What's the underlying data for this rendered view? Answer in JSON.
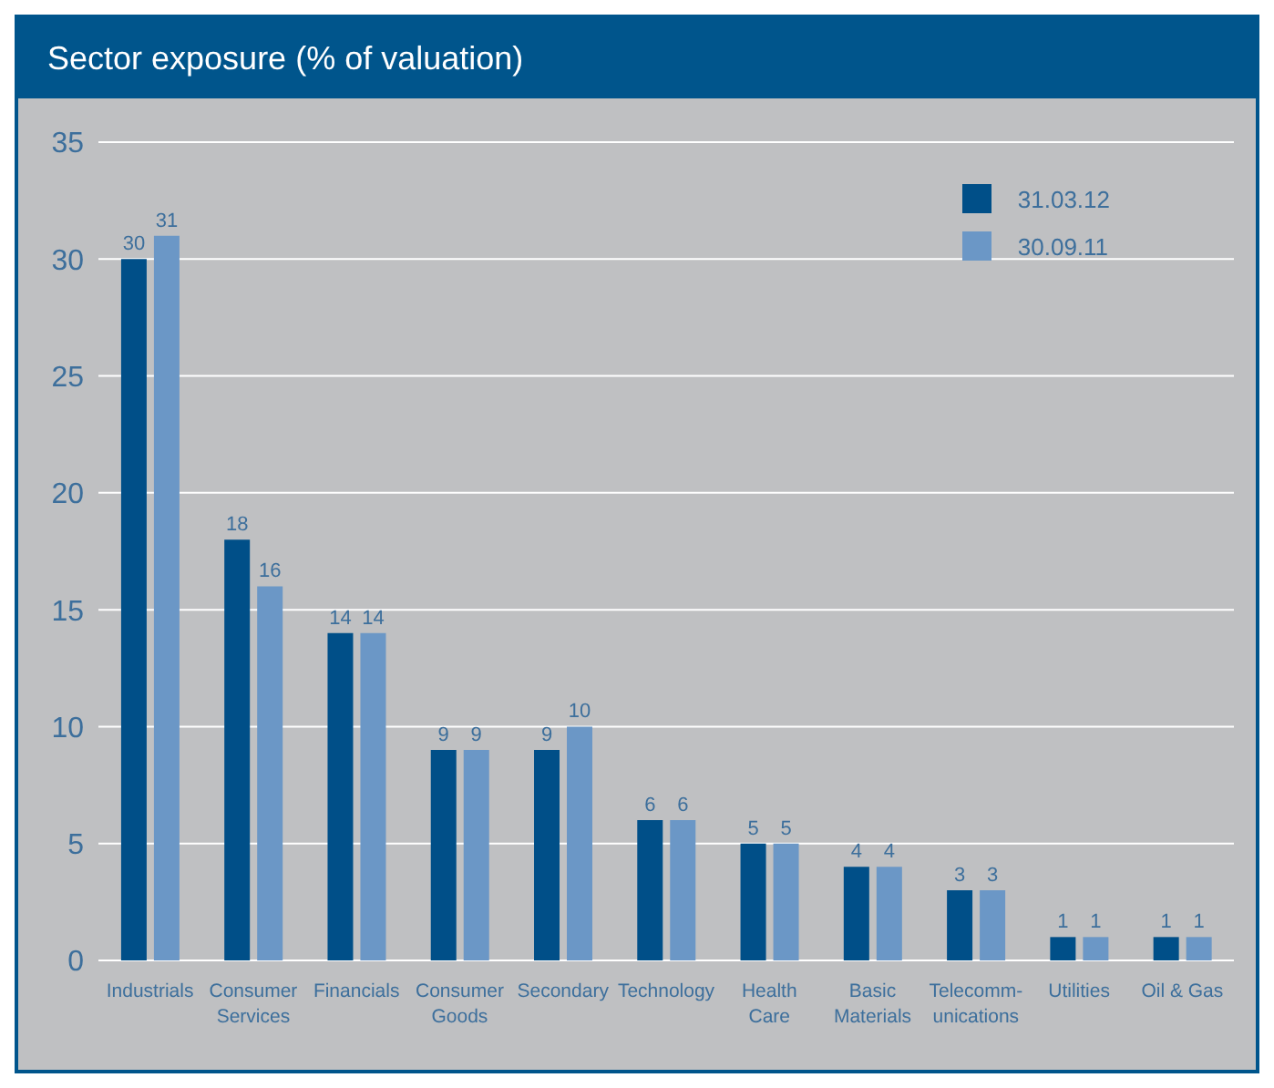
{
  "chart_data": {
    "type": "bar",
    "title": "Sector exposure (% of valuation)",
    "categories": [
      "Industrials",
      "Consumer\nServices",
      "Financials",
      "Consumer\nGoods",
      "Secondary",
      "Technology",
      "Health\nCare",
      "Basic\nMaterials",
      "Telecomm-\nunications",
      "Utilities",
      "Oil & Gas"
    ],
    "series": [
      {
        "name": "31.03.12",
        "color": "#004f88",
        "values": [
          30,
          18,
          14,
          9,
          9,
          6,
          5,
          4,
          3,
          1,
          1
        ]
      },
      {
        "name": "30.09.11",
        "color": "#6b97c6",
        "values": [
          31,
          16,
          14,
          9,
          10,
          6,
          5,
          4,
          3,
          1,
          1
        ]
      }
    ],
    "ylim": [
      0,
      35
    ],
    "yticks": [
      0,
      5,
      10,
      15,
      20,
      25,
      30,
      35
    ],
    "grid": "y",
    "legend": "top right",
    "data_labels": true
  }
}
